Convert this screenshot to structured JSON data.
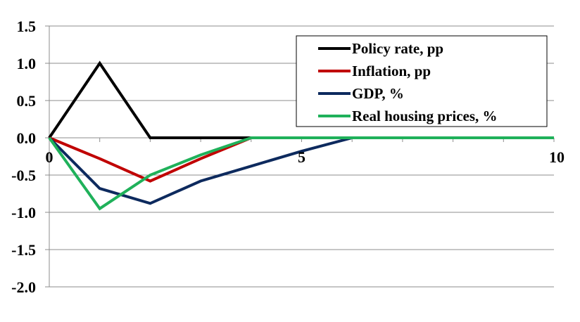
{
  "chart_data": {
    "type": "line",
    "title": "",
    "xlabel": "",
    "ylabel": "",
    "x": [
      0,
      1,
      2,
      3,
      4,
      5,
      6,
      7,
      8,
      9,
      10
    ],
    "xlim": [
      0,
      10
    ],
    "ylim": [
      -2.0,
      1.5
    ],
    "x_ticks": [
      0,
      5,
      10
    ],
    "x_tick_labels": [
      "0",
      "5",
      "10"
    ],
    "y_ticks": [
      1.5,
      1.0,
      0.5,
      0.0,
      -0.5,
      -1.0,
      -1.5,
      -2.0
    ],
    "y_tick_labels": [
      "1.5",
      "1.0",
      "0.5",
      "0.0",
      "-0.5",
      "-1.0",
      "-1.5",
      "-2.0"
    ],
    "grid": "horizontal",
    "legend_position": "top-right",
    "series": [
      {
        "name": "Policy rate, pp",
        "color": "#000000",
        "values": [
          0,
          1.0,
          0,
          0,
          0,
          0,
          0,
          0,
          0,
          0,
          0
        ]
      },
      {
        "name": "Inflation, pp",
        "color": "#c00000",
        "values": [
          0,
          -0.28,
          -0.58,
          -0.28,
          0,
          0,
          0,
          0,
          0,
          0,
          0
        ]
      },
      {
        "name": "GDP, %",
        "color": "#0d2a5e",
        "values": [
          0,
          -0.68,
          -0.88,
          -0.58,
          -0.38,
          -0.18,
          0,
          0,
          0,
          0,
          0
        ]
      },
      {
        "name": "Real housing prices, %",
        "color": "#1fb15a",
        "values": [
          0,
          -0.95,
          -0.5,
          -0.23,
          0,
          0,
          0,
          0,
          0,
          0,
          0
        ]
      }
    ]
  }
}
